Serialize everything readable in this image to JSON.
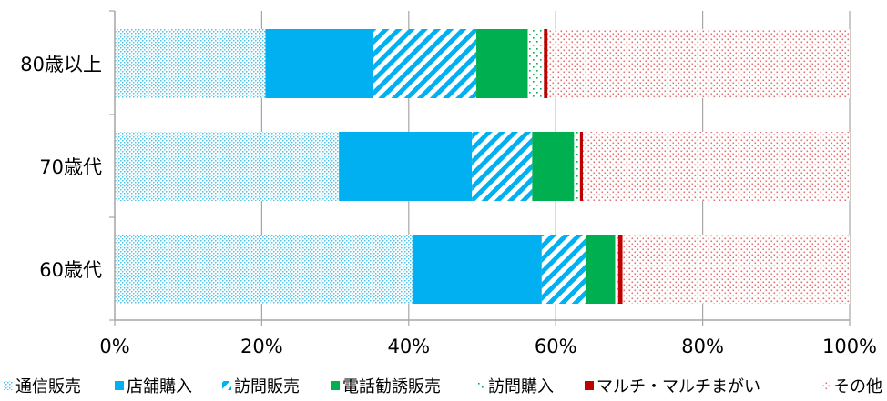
{
  "chart_data": {
    "type": "bar",
    "orientation": "horizontal",
    "stacked": true,
    "percent": true,
    "categories": [
      "80歳以上",
      "70歳代",
      "60歳代"
    ],
    "series": [
      {
        "name": "通信販売",
        "values": [
          20.5,
          30.5,
          40.5
        ],
        "color": "#7FD6EA",
        "pattern": "dots-fine"
      },
      {
        "name": "店舗購入",
        "values": [
          14.7,
          18.1,
          17.6
        ],
        "color": "#00B0F0",
        "pattern": "solid"
      },
      {
        "name": "訪問販売",
        "values": [
          14.0,
          8.2,
          6.0
        ],
        "color": "#00B0F0",
        "pattern": "diagonal"
      },
      {
        "name": "電話勧誘販売",
        "values": [
          7.0,
          5.7,
          4.0
        ],
        "color": "#00B050",
        "pattern": "solid"
      },
      {
        "name": "訪問購入",
        "values": [
          2.2,
          0.8,
          0.4
        ],
        "color": "#00B050",
        "pattern": "dots-sparse"
      },
      {
        "name": "マルチ・マルチまがい",
        "values": [
          0.5,
          0.4,
          0.6
        ],
        "color": "#C00000",
        "pattern": "solid"
      },
      {
        "name": "その他",
        "values": [
          41.1,
          36.3,
          30.9
        ],
        "color": "#E8A0A0",
        "pattern": "dots-red"
      }
    ],
    "x_ticks": [
      "0%",
      "20%",
      "40%",
      "60%",
      "80%",
      "100%"
    ],
    "xlim": [
      0,
      100
    ],
    "title": "",
    "xlabel": "",
    "ylabel": "",
    "grid": "vertical",
    "legend": "bottom"
  }
}
